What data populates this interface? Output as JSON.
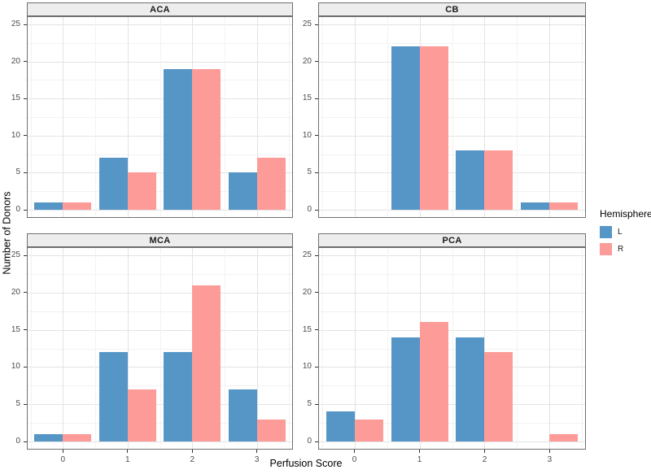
{
  "figure": {
    "y_axis_title": "Number of Donors",
    "x_axis_title": "Perfusion Score",
    "y_tick_labels": [
      "0",
      "5",
      "10",
      "15",
      "20",
      "25"
    ],
    "x_tick_labels": [
      "0",
      "1",
      "2",
      "3"
    ],
    "colors": {
      "L": "#5596c7",
      "R": "#fc9b98",
      "tick": "#333333",
      "tick_text": "#4d4d4d",
      "panel_border": "#6f6f6f",
      "strip_bg": "#ededed",
      "grid_major": "#e3e3e3",
      "grid_minor": "#f2f2f2"
    },
    "legend": {
      "title": "Hemisphere",
      "position": "right",
      "entries": [
        {
          "label": "L",
          "color": "#5596c7"
        },
        {
          "label": "R",
          "color": "#fc9b98"
        }
      ]
    }
  },
  "chart_data": [
    {
      "type": "bar",
      "facet": "ACA",
      "categories": [
        0,
        1,
        2,
        3
      ],
      "series": [
        {
          "name": "L",
          "values": [
            1,
            7,
            19,
            5
          ]
        },
        {
          "name": "R",
          "values": [
            1,
            5,
            19,
            7
          ]
        }
      ],
      "xlabel": "Perfusion Score",
      "ylabel": "Number of Donors",
      "ylim": [
        0,
        25
      ],
      "grid": true
    },
    {
      "type": "bar",
      "facet": "CB",
      "categories": [
        0,
        1,
        2,
        3
      ],
      "series": [
        {
          "name": "L",
          "values": [
            0,
            22,
            8,
            1
          ]
        },
        {
          "name": "R",
          "values": [
            0,
            22,
            8,
            1
          ]
        }
      ],
      "xlabel": "Perfusion Score",
      "ylabel": "Number of Donors",
      "ylim": [
        0,
        25
      ],
      "grid": true
    },
    {
      "type": "bar",
      "facet": "MCA",
      "categories": [
        0,
        1,
        2,
        3
      ],
      "series": [
        {
          "name": "L",
          "values": [
            1,
            12,
            12,
            7
          ]
        },
        {
          "name": "R",
          "values": [
            1,
            7,
            21,
            3
          ]
        }
      ],
      "xlabel": "Perfusion Score",
      "ylabel": "Number of Donors",
      "ylim": [
        0,
        25
      ],
      "grid": true
    },
    {
      "type": "bar",
      "facet": "PCA",
      "categories": [
        0,
        1,
        2,
        3
      ],
      "series": [
        {
          "name": "L",
          "values": [
            4,
            14,
            14,
            0
          ]
        },
        {
          "name": "R",
          "values": [
            3,
            16,
            12,
            1
          ]
        }
      ],
      "xlabel": "Perfusion Score",
      "ylabel": "Number of Donors",
      "ylim": [
        0,
        25
      ],
      "grid": true
    }
  ]
}
